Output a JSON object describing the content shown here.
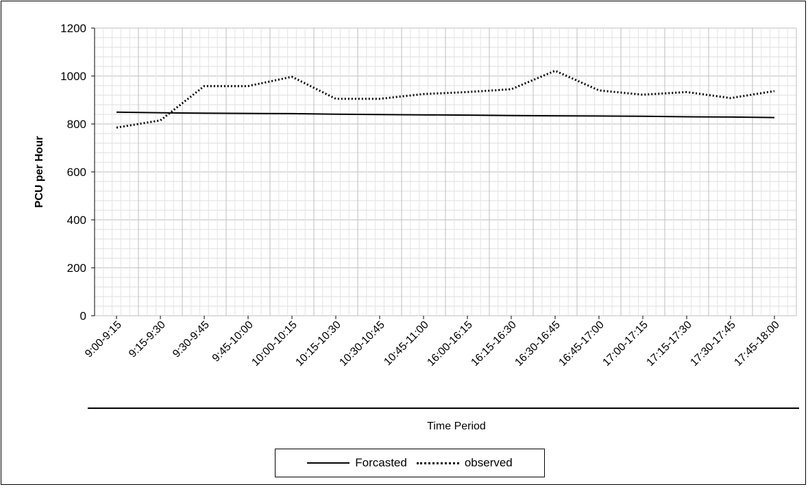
{
  "chart_data": {
    "type": "line",
    "categories": [
      "9:00-9:15",
      "9:15-9:30",
      "9:30-9:45",
      "9:45-10:00",
      "10:00-10:15",
      "10:15-10:30",
      "10:30-10:45",
      "10:45-11:00",
      "16:00-16:15",
      "16:15-16:30",
      "16:30-16:45",
      "16:45-17:00",
      "17:00-17:15",
      "17:15-17:30",
      "17:30-17:45",
      "17:45-18:00"
    ],
    "series": [
      {
        "name": "Forcasted",
        "style": "solid",
        "color": "#000000",
        "values": [
          849,
          847,
          845,
          844,
          843,
          841,
          839,
          838,
          837,
          835,
          834,
          833,
          832,
          830,
          829,
          827
        ]
      },
      {
        "name": "observed",
        "style": "dotted",
        "color": "#000000",
        "values": [
          785,
          815,
          958,
          958,
          997,
          905,
          905,
          925,
          933,
          945,
          1022,
          940,
          922,
          933,
          908,
          937
        ]
      }
    ],
    "xlabel": "Time Period",
    "ylabel": "PCU per Hour",
    "ylim": [
      0,
      1200
    ],
    "yticks": [
      0,
      200,
      400,
      600,
      800,
      1000,
      1200
    ],
    "grid": true,
    "legend_position": "bottom"
  }
}
